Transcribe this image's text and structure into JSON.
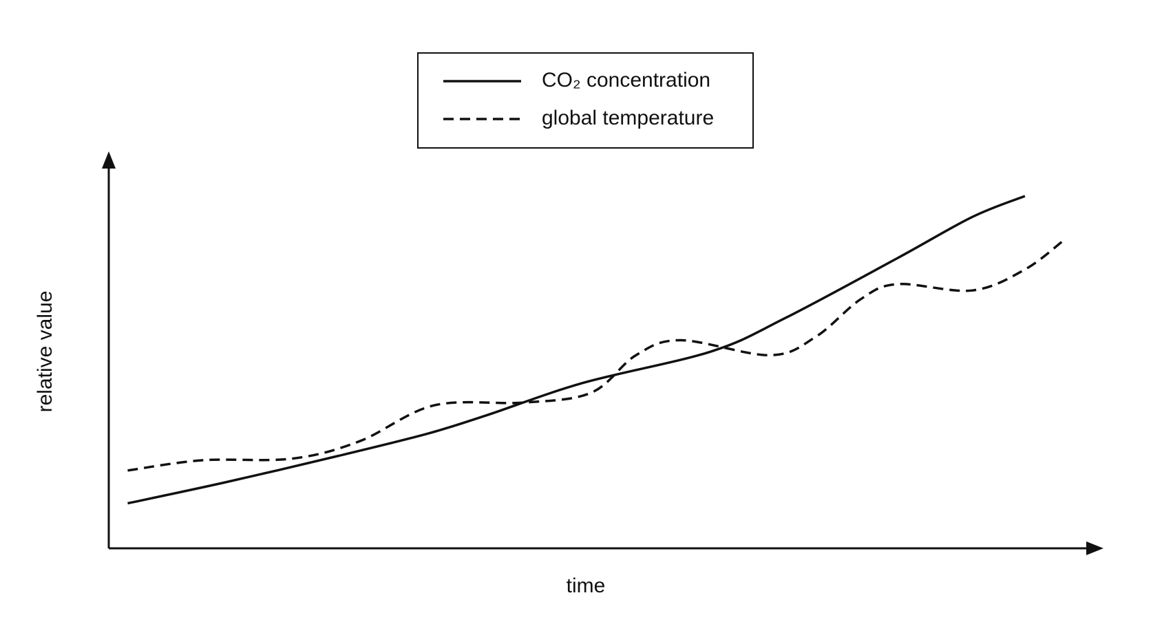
{
  "chart_data": {
    "type": "line",
    "xlabel": "time",
    "ylabel": "relative value",
    "xlim": [
      0,
      100
    ],
    "ylim": [
      0,
      100
    ],
    "legend": "top",
    "series": [
      {
        "name": "CO₂ concentration",
        "color": "#111111",
        "line_style": "solid",
        "x": [
          1.9,
          11.7,
          22.9,
          32.0,
          38.0,
          47.7,
          60.5,
          68.0,
          79.3,
          86.8,
          92.1
        ],
        "values": [
          11.4,
          16.7,
          23.3,
          29.0,
          33.7,
          41.9,
          49.8,
          58.3,
          73.5,
          83.9,
          89.2
        ]
      },
      {
        "name": "global temperature",
        "color": "#111111",
        "line_style": "dashed",
        "x": [
          1.9,
          9.4,
          18.4,
          25.2,
          32.7,
          41.7,
          48.5,
          53.0,
          57.5,
          66.5,
          71.1,
          75.6,
          79.3,
          86.8,
          92.1,
          96.1
        ],
        "values": [
          19.7,
          22.3,
          22.7,
          27.1,
          36.2,
          36.9,
          39.4,
          48.9,
          52.7,
          48.9,
          53.6,
          63.1,
          66.9,
          65.3,
          70.6,
          78.2
        ]
      }
    ]
  }
}
